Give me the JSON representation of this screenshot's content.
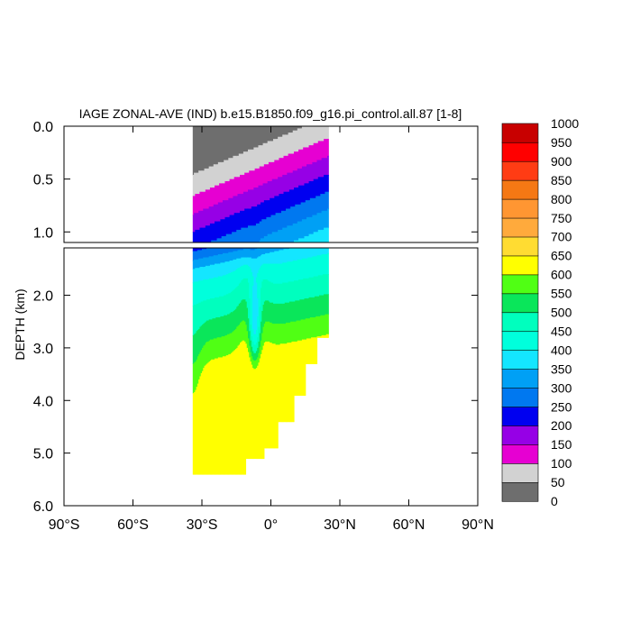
{
  "chart_data": {
    "type": "contour",
    "title": "IAGE ZONAL-AVE (IND) b.e15.B1850.f09_g16.pi_control.all.87 [1-8]",
    "ylabel": "DEPTH (km)",
    "xlabel": "",
    "x_ticks": [
      "90°S",
      "60°S",
      "30°S",
      "0°",
      "30°N",
      "60°N",
      "90°N"
    ],
    "x_tick_values": [
      -90,
      -60,
      -30,
      0,
      30,
      60,
      90
    ],
    "xlim": [
      -90,
      90
    ],
    "y_ticks_upper": [
      "0.0",
      "0.5",
      "1.0"
    ],
    "y_tick_values_upper": [
      0.0,
      0.5,
      1.0
    ],
    "ylim_upper": [
      0,
      1.1
    ],
    "y_ticks_lower": [
      "2.0",
      "3.0",
      "4.0",
      "5.0",
      "6.0"
    ],
    "y_tick_values_lower": [
      2.0,
      3.0,
      4.0,
      5.0,
      6.0
    ],
    "ylim_lower": [
      1.1,
      6.0
    ],
    "data_extent_lat": [
      -34,
      25
    ],
    "max_depth_km": 5.4,
    "contour_levels": [
      0,
      50,
      100,
      150,
      200,
      250,
      300,
      350,
      400,
      450,
      500,
      550,
      600,
      650,
      700,
      750,
      800,
      850,
      900,
      950,
      1000
    ],
    "level_colors": [
      "#6e6e6e",
      "#d2d2d2",
      "#e600d2",
      "#9600e6",
      "#0000f0",
      "#0078f0",
      "#00a0f5",
      "#14e6ff",
      "#00ffdc",
      "#00ffbe",
      "#0ae65a",
      "#50ff14",
      "#ffff00",
      "#ffdc32",
      "#ffaa3c",
      "#ff9632",
      "#f57814",
      "#ff3c14",
      "#ff0000",
      "#c80000"
    ],
    "colorbar_labels": [
      "1000",
      "950",
      "900",
      "850",
      "800",
      "750",
      "700",
      "650",
      "600",
      "550",
      "500",
      "450",
      "400",
      "350",
      "300",
      "250",
      "200",
      "150",
      "100",
      "50",
      "0"
    ]
  }
}
